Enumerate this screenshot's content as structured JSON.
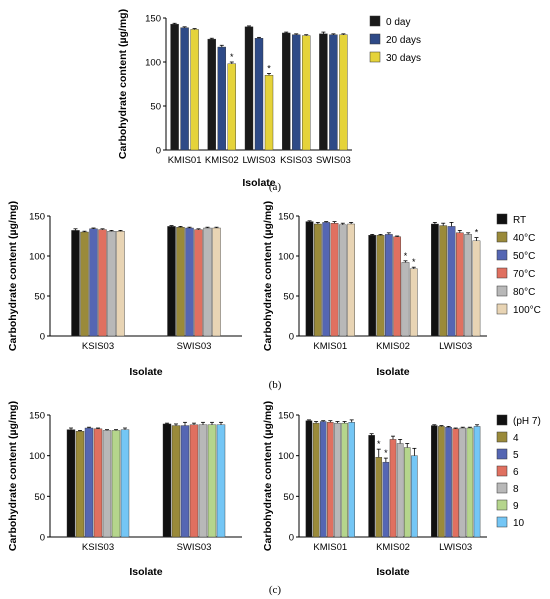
{
  "chart_data": [
    {
      "id": "a",
      "type": "bar",
      "caption": "(a)",
      "xlabel": "Isolate",
      "ylabel": "Carbohydrate content (µg/mg)",
      "ylim": [
        0,
        150
      ],
      "yticks": [
        0,
        50,
        100,
        150
      ],
      "categories": [
        "KMIS01",
        "KMIS02",
        "LWIS03",
        "KSIS03",
        "SWIS03"
      ],
      "series": [
        {
          "name": "0 day",
          "color": "#1a1a1a",
          "values": [
            143,
            126,
            140,
            133,
            132
          ]
        },
        {
          "name": "20 days",
          "color": "#2e4a87",
          "values": [
            139,
            117,
            127,
            131,
            131
          ]
        },
        {
          "name": "30 days",
          "color": "#e5d33a",
          "values": [
            137,
            98,
            85,
            130,
            131
          ]
        }
      ],
      "errors": [
        [
          1,
          1,
          1,
          1,
          2
        ],
        [
          1,
          2,
          1,
          1,
          1
        ],
        [
          1,
          2,
          2,
          1,
          1
        ]
      ],
      "significant": [
        [
          false,
          false,
          false,
          false,
          false
        ],
        [
          false,
          false,
          false,
          false,
          false
        ],
        [
          false,
          true,
          true,
          false,
          false
        ]
      ],
      "significance_marker": "*",
      "legend": "right"
    },
    {
      "id": "b-left",
      "type": "bar",
      "caption": "",
      "xlabel": "Isolate",
      "ylabel": "Carbohydrate content (µg/mg)",
      "ylim": [
        0,
        150
      ],
      "yticks": [
        0,
        50,
        100,
        150
      ],
      "categories": [
        "KSIS03",
        "SWIS03"
      ],
      "series": [
        {
          "name": "RT",
          "color": "#111111",
          "values": [
            132,
            137
          ]
        },
        {
          "name": "40°C",
          "color": "#9a8a3a",
          "values": [
            130,
            136
          ]
        },
        {
          "name": "50°C",
          "color": "#5566b3",
          "values": [
            134,
            135
          ]
        },
        {
          "name": "70°C",
          "color": "#e07060",
          "values": [
            133,
            133
          ]
        },
        {
          "name": "80°C",
          "color": "#b8b8b8",
          "values": [
            131,
            135
          ]
        },
        {
          "name": "100°C",
          "color": "#e8d4b4",
          "values": [
            131,
            135
          ]
        }
      ],
      "errors": [
        [
          2,
          1
        ],
        [
          1,
          1
        ],
        [
          1,
          1
        ],
        [
          1,
          1
        ],
        [
          1,
          1
        ],
        [
          1,
          1
        ]
      ],
      "legend": "none"
    },
    {
      "id": "b-right",
      "type": "bar",
      "caption": "(b)",
      "xlabel": "Isolate",
      "ylabel": "Carbohydrate content (µg/mg)",
      "ylim": [
        0,
        150
      ],
      "yticks": [
        0,
        50,
        100,
        150
      ],
      "categories": [
        "KMIS01",
        "KMIS02",
        "LWIS03"
      ],
      "series": [
        {
          "name": "RT",
          "color": "#111111",
          "values": [
            143,
            126,
            140
          ]
        },
        {
          "name": "40°C",
          "color": "#9a8a3a",
          "values": [
            140,
            126,
            138
          ]
        },
        {
          "name": "50°C",
          "color": "#5566b3",
          "values": [
            142,
            127,
            137
          ]
        },
        {
          "name": "70°C",
          "color": "#e07060",
          "values": [
            141,
            124,
            129
          ]
        },
        {
          "name": "80°C",
          "color": "#b8b8b8",
          "values": [
            139,
            92,
            127
          ]
        },
        {
          "name": "100°C",
          "color": "#e8d4b4",
          "values": [
            140,
            84,
            119
          ]
        }
      ],
      "errors": [
        [
          1,
          1,
          2
        ],
        [
          2,
          1,
          3
        ],
        [
          1,
          2,
          5
        ],
        [
          2,
          1,
          3
        ],
        [
          2,
          2,
          2
        ],
        [
          2,
          2,
          4
        ]
      ],
      "significant": [
        [
          false,
          false,
          false
        ],
        [
          false,
          false,
          false
        ],
        [
          false,
          false,
          false
        ],
        [
          false,
          false,
          false
        ],
        [
          false,
          true,
          false
        ],
        [
          false,
          true,
          true
        ]
      ],
      "significance_marker": "*",
      "legend": "right"
    },
    {
      "id": "c-left",
      "type": "bar",
      "caption": "",
      "xlabel": "Isolate",
      "ylabel": "Carbohydrate content (µg/mg)",
      "ylim": [
        0,
        150
      ],
      "yticks": [
        0,
        50,
        100,
        150
      ],
      "categories": [
        "KSIS03",
        "SWIS03"
      ],
      "series": [
        {
          "name": "(pH 7)",
          "color": "#111111",
          "values": [
            132,
            139
          ]
        },
        {
          "name": "4",
          "color": "#9a8a3a",
          "values": [
            130,
            137
          ]
        },
        {
          "name": "5",
          "color": "#5566b3",
          "values": [
            134,
            137
          ]
        },
        {
          "name": "6",
          "color": "#e07060",
          "values": [
            133,
            138
          ]
        },
        {
          "name": "8",
          "color": "#b8b8b8",
          "values": [
            131,
            138
          ]
        },
        {
          "name": "9",
          "color": "#b5d58c",
          "values": [
            131,
            138
          ]
        },
        {
          "name": "10",
          "color": "#74c6f5",
          "values": [
            132,
            138
          ]
        }
      ],
      "errors": [
        [
          2,
          1
        ],
        [
          1,
          2
        ],
        [
          1,
          4
        ],
        [
          1,
          2
        ],
        [
          1,
          3
        ],
        [
          1,
          3
        ],
        [
          2,
          3
        ]
      ],
      "legend": "none"
    },
    {
      "id": "c-right",
      "type": "bar",
      "caption": "(c)",
      "xlabel": "Isolate",
      "ylabel": "Carbohydrate content (µg/mg)",
      "ylim": [
        0,
        150
      ],
      "yticks": [
        0,
        50,
        100,
        150
      ],
      "categories": [
        "KMIS01",
        "KMIS02",
        "LWIS03"
      ],
      "series": [
        {
          "name": "(pH 7)",
          "color": "#111111",
          "values": [
            143,
            125,
            137
          ]
        },
        {
          "name": "4",
          "color": "#9a8a3a",
          "values": [
            140,
            98,
            136
          ]
        },
        {
          "name": "5",
          "color": "#5566b3",
          "values": [
            142,
            92,
            135
          ]
        },
        {
          "name": "6",
          "color": "#e07060",
          "values": [
            141,
            120,
            133
          ]
        },
        {
          "name": "8",
          "color": "#b8b8b8",
          "values": [
            140,
            115,
            134
          ]
        },
        {
          "name": "9",
          "color": "#b5d58c",
          "values": [
            140,
            110,
            134
          ]
        },
        {
          "name": "10",
          "color": "#74c6f5",
          "values": [
            141,
            100,
            136
          ]
        }
      ],
      "errors": [
        [
          1,
          2,
          1
        ],
        [
          2,
          10,
          1
        ],
        [
          1,
          5,
          1
        ],
        [
          2,
          4,
          1
        ],
        [
          2,
          5,
          1
        ],
        [
          2,
          5,
          1
        ],
        [
          3,
          9,
          2
        ]
      ],
      "significant": [
        [
          false,
          false,
          false
        ],
        [
          false,
          true,
          false
        ],
        [
          false,
          true,
          false
        ],
        [
          false,
          false,
          false
        ],
        [
          false,
          false,
          false
        ],
        [
          false,
          false,
          false
        ],
        [
          false,
          false,
          false
        ]
      ],
      "significance_marker": "*",
      "legend": "right"
    }
  ]
}
